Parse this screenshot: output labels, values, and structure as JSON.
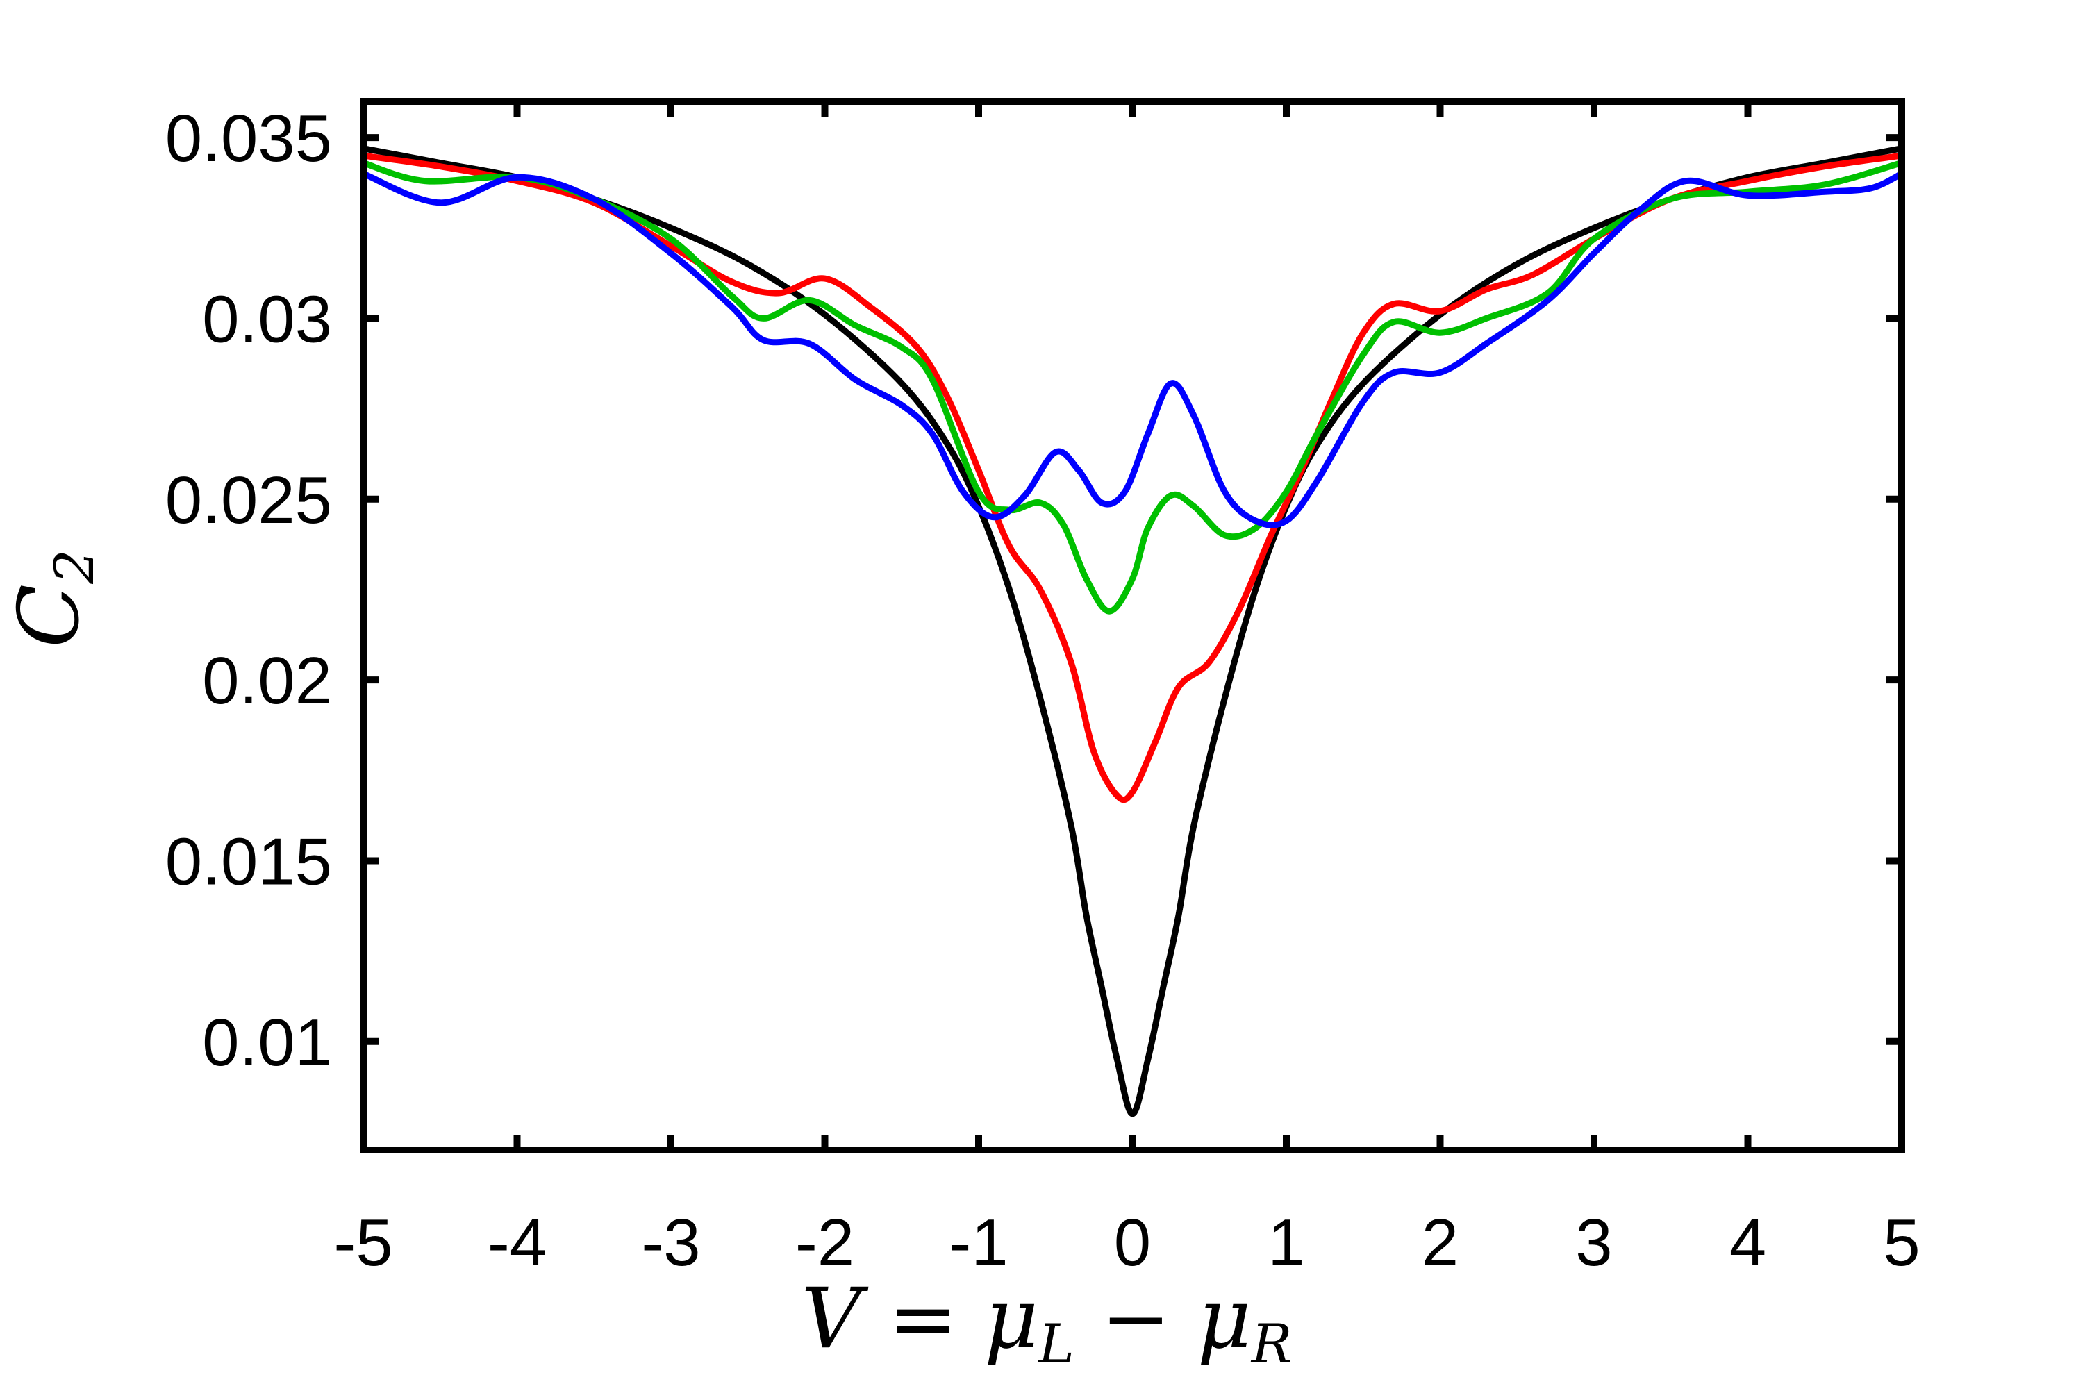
{
  "chart_data": {
    "type": "line",
    "xlabel": "V = μL − μR",
    "xlabel_parts": {
      "main": "V = μ",
      "sub1": "L",
      "op": " − μ",
      "sub2": "R"
    },
    "ylabel": "C2",
    "ylabel_parts": {
      "main": "C",
      "sub": "2"
    },
    "xlim": [
      -5,
      5
    ],
    "ylim": [
      0.007,
      0.036
    ],
    "xticks": [
      -5,
      -4,
      -3,
      -2,
      -1,
      0,
      1,
      2,
      3,
      4,
      5
    ],
    "xtick_labels": [
      "-5",
      "-4",
      "-3",
      "-2",
      "-1",
      "0",
      "1",
      "2",
      "3",
      "4",
      "5"
    ],
    "yticks": [
      0.01,
      0.015,
      0.02,
      0.025,
      0.03,
      0.035
    ],
    "ytick_labels": [
      "0.01",
      "0.015",
      "0.02",
      "0.025",
      "0.03",
      "0.035"
    ],
    "grid": false,
    "series": [
      {
        "color": "#000000",
        "points": [
          [
            -5,
            0.0347
          ],
          [
            -4.5,
            0.0343
          ],
          [
            -4,
            0.0339
          ],
          [
            -3.5,
            0.0333
          ],
          [
            -3,
            0.0325
          ],
          [
            -2.5,
            0.0315
          ],
          [
            -2,
            0.0301
          ],
          [
            -1.5,
            0.0282
          ],
          [
            -1.2,
            0.0265
          ],
          [
            -1,
            0.0248
          ],
          [
            -0.8,
            0.0225
          ],
          [
            -0.6,
            0.0195
          ],
          [
            -0.4,
            0.016
          ],
          [
            -0.3,
            0.0135
          ],
          [
            -0.2,
            0.0115
          ],
          [
            -0.1,
            0.0095
          ],
          [
            0,
            0.008
          ],
          [
            0.1,
            0.0095
          ],
          [
            0.2,
            0.0115
          ],
          [
            0.3,
            0.0135
          ],
          [
            0.4,
            0.016
          ],
          [
            0.6,
            0.0195
          ],
          [
            0.8,
            0.0225
          ],
          [
            1,
            0.0248
          ],
          [
            1.2,
            0.0265
          ],
          [
            1.5,
            0.0282
          ],
          [
            2,
            0.0301
          ],
          [
            2.5,
            0.0315
          ],
          [
            3,
            0.0325
          ],
          [
            3.5,
            0.0333
          ],
          [
            4,
            0.0339
          ],
          [
            4.5,
            0.0343
          ],
          [
            5,
            0.0347
          ]
        ]
      },
      {
        "color": "#ff0000",
        "points": [
          [
            -5,
            0.0345
          ],
          [
            -4.5,
            0.0342
          ],
          [
            -4,
            0.0338
          ],
          [
            -3.5,
            0.0332
          ],
          [
            -3,
            0.032
          ],
          [
            -2.6,
            0.031
          ],
          [
            -2.3,
            0.0307
          ],
          [
            -2,
            0.0311
          ],
          [
            -1.7,
            0.0303
          ],
          [
            -1.4,
            0.0292
          ],
          [
            -1.2,
            0.0278
          ],
          [
            -1,
            0.0258
          ],
          [
            -0.8,
            0.0237
          ],
          [
            -0.6,
            0.0225
          ],
          [
            -0.4,
            0.0205
          ],
          [
            -0.25,
            0.018
          ],
          [
            -0.1,
            0.0168
          ],
          [
            0,
            0.0169
          ],
          [
            0.15,
            0.0183
          ],
          [
            0.3,
            0.0198
          ],
          [
            0.5,
            0.0205
          ],
          [
            0.7,
            0.022
          ],
          [
            0.9,
            0.024
          ],
          [
            1.1,
            0.0258
          ],
          [
            1.3,
            0.0278
          ],
          [
            1.5,
            0.0296
          ],
          [
            1.7,
            0.0304
          ],
          [
            2,
            0.0302
          ],
          [
            2.3,
            0.0308
          ],
          [
            2.6,
            0.0312
          ],
          [
            3,
            0.0322
          ],
          [
            3.5,
            0.0333
          ],
          [
            4,
            0.0338
          ],
          [
            4.5,
            0.0342
          ],
          [
            5,
            0.0345
          ]
        ]
      },
      {
        "color": "#00c000",
        "points": [
          [
            -5,
            0.0343
          ],
          [
            -4.6,
            0.0338
          ],
          [
            -4,
            0.0339
          ],
          [
            -3.5,
            0.0333
          ],
          [
            -3,
            0.0322
          ],
          [
            -2.6,
            0.0306
          ],
          [
            -2.4,
            0.03
          ],
          [
            -2.1,
            0.0305
          ],
          [
            -1.8,
            0.0298
          ],
          [
            -1.5,
            0.0292
          ],
          [
            -1.3,
            0.0283
          ],
          [
            -1,
            0.0252
          ],
          [
            -0.8,
            0.0247
          ],
          [
            -0.6,
            0.0249
          ],
          [
            -0.45,
            0.0243
          ],
          [
            -0.3,
            0.0228
          ],
          [
            -0.15,
            0.0219
          ],
          [
            0,
            0.0228
          ],
          [
            0.1,
            0.0242
          ],
          [
            0.25,
            0.0251
          ],
          [
            0.4,
            0.0248
          ],
          [
            0.6,
            0.024
          ],
          [
            0.8,
            0.0242
          ],
          [
            1,
            0.0252
          ],
          [
            1.2,
            0.0268
          ],
          [
            1.5,
            0.029
          ],
          [
            1.7,
            0.0299
          ],
          [
            2,
            0.0296
          ],
          [
            2.3,
            0.03
          ],
          [
            2.7,
            0.0307
          ],
          [
            3,
            0.0322
          ],
          [
            3.5,
            0.0333
          ],
          [
            4,
            0.0335
          ],
          [
            4.5,
            0.0337
          ],
          [
            5,
            0.0343
          ]
        ]
      },
      {
        "color": "#0000ff",
        "points": [
          [
            -5,
            0.034
          ],
          [
            -4.5,
            0.0332
          ],
          [
            -4,
            0.0339
          ],
          [
            -3.5,
            0.0333
          ],
          [
            -3,
            0.0318
          ],
          [
            -2.6,
            0.0303
          ],
          [
            -2.4,
            0.0294
          ],
          [
            -2.1,
            0.0293
          ],
          [
            -1.8,
            0.0283
          ],
          [
            -1.5,
            0.0276
          ],
          [
            -1.3,
            0.0268
          ],
          [
            -1.1,
            0.0252
          ],
          [
            -0.9,
            0.0245
          ],
          [
            -0.7,
            0.0251
          ],
          [
            -0.5,
            0.0263
          ],
          [
            -0.35,
            0.0258
          ],
          [
            -0.2,
            0.0249
          ],
          [
            -0.05,
            0.0252
          ],
          [
            0.1,
            0.0268
          ],
          [
            0.25,
            0.0282
          ],
          [
            0.4,
            0.0273
          ],
          [
            0.6,
            0.0252
          ],
          [
            0.8,
            0.0244
          ],
          [
            1,
            0.0244
          ],
          [
            1.2,
            0.0255
          ],
          [
            1.5,
            0.0277
          ],
          [
            1.7,
            0.0285
          ],
          [
            2,
            0.0285
          ],
          [
            2.3,
            0.0293
          ],
          [
            2.7,
            0.0305
          ],
          [
            3,
            0.0318
          ],
          [
            3.3,
            0.033
          ],
          [
            3.6,
            0.0338
          ],
          [
            4,
            0.0334
          ],
          [
            4.5,
            0.0335
          ],
          [
            4.8,
            0.0336
          ],
          [
            5,
            0.034
          ]
        ]
      }
    ]
  }
}
